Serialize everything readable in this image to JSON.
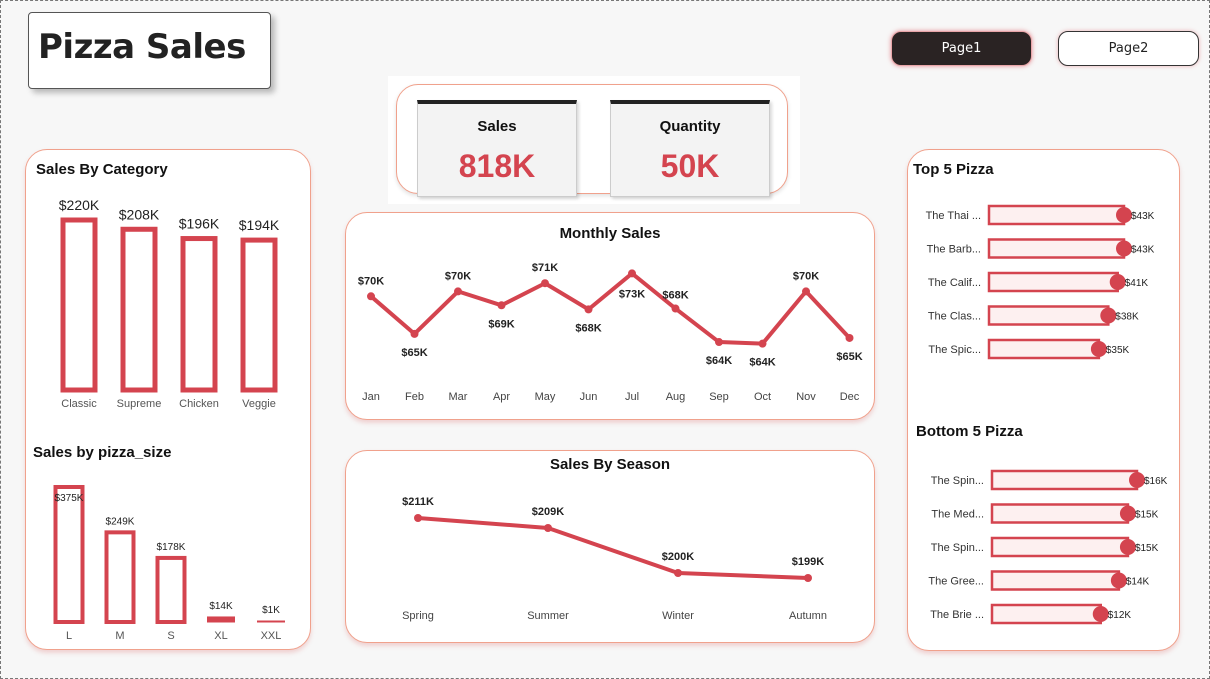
{
  "header": {
    "title": "Pizza Sales"
  },
  "nav": {
    "page1": "Page1",
    "page2": "Page2"
  },
  "kpis": {
    "sales": {
      "label": "Sales",
      "value": "818K"
    },
    "quantity": {
      "label": "Quantity",
      "value": "50K"
    }
  },
  "colors": {
    "accent": "#d4444f",
    "panel_border": "#f0a18c",
    "dark": "#2a2323"
  },
  "panels": {
    "sales_by_category": "Sales By Category",
    "sales_by_size": "Sales by pizza_size",
    "monthly_sales": "Monthly Sales",
    "sales_by_season": "Sales By Season",
    "top5": "Top 5 Pizza",
    "bottom5": "Bottom 5 Pizza"
  },
  "chart_data": [
    {
      "id": "category",
      "type": "bar",
      "title": "Sales By Category",
      "categories": [
        "Classic",
        "Supreme",
        "Chicken",
        "Veggie"
      ],
      "values": [
        220,
        208,
        196,
        194
      ],
      "labels": [
        "$220K",
        "$208K",
        "$196K",
        "$194K"
      ],
      "ylim": [
        0,
        220
      ]
    },
    {
      "id": "size",
      "type": "bar",
      "title": "Sales by pizza_size",
      "categories": [
        "L",
        "M",
        "S",
        "XL",
        "XXL"
      ],
      "values": [
        375,
        249,
        178,
        14,
        1
      ],
      "labels": [
        "$375K",
        "$249K",
        "$178K",
        "$14K",
        "$1K"
      ],
      "ylim": [
        0,
        375
      ]
    },
    {
      "id": "monthly",
      "type": "line",
      "title": "Monthly Sales",
      "categories": [
        "Jan",
        "Feb",
        "Mar",
        "Apr",
        "May",
        "Jun",
        "Jul",
        "Aug",
        "Sep",
        "Oct",
        "Nov",
        "Dec"
      ],
      "values": [
        69.8,
        65.2,
        70.4,
        68.7,
        71.4,
        68.2,
        72.6,
        68.3,
        64.2,
        64.0,
        70.4,
        64.7
      ],
      "labels": [
        "$70K",
        "$65K",
        "$70K",
        "$69K",
        "$71K",
        "$68K",
        "$73K",
        "$68K",
        "$64K",
        "$64K",
        "$70K",
        "$65K"
      ],
      "ylim": [
        62,
        74
      ]
    },
    {
      "id": "season",
      "type": "line",
      "title": "Sales By Season",
      "categories": [
        "Spring",
        "Summer",
        "Winter",
        "Autumn"
      ],
      "values": [
        211,
        209,
        200,
        199
      ],
      "labels": [
        "$211K",
        "$209K",
        "$200K",
        "$199K"
      ],
      "ylim": [
        197,
        213
      ]
    },
    {
      "id": "top5",
      "type": "bar",
      "title": "Top 5 Pizza",
      "categories": [
        "The Thai ...",
        "The Barb...",
        "The Calif...",
        "The Clas...",
        "The Spic..."
      ],
      "values": [
        43,
        43,
        41,
        38,
        35
      ],
      "labels": [
        "$43K",
        "$43K",
        "$41K",
        "$38K",
        "$35K"
      ],
      "xlim": [
        0,
        43
      ]
    },
    {
      "id": "bottom5",
      "type": "bar",
      "title": "Bottom 5 Pizza",
      "categories": [
        "The Spin...",
        "The Med...",
        "The Spin...",
        "The Gree...",
        "The Brie ..."
      ],
      "values": [
        16,
        15,
        15,
        14,
        12
      ],
      "labels": [
        "$16K",
        "$15K",
        "$15K",
        "$14K",
        "$12K"
      ],
      "xlim": [
        0,
        16
      ]
    }
  ]
}
